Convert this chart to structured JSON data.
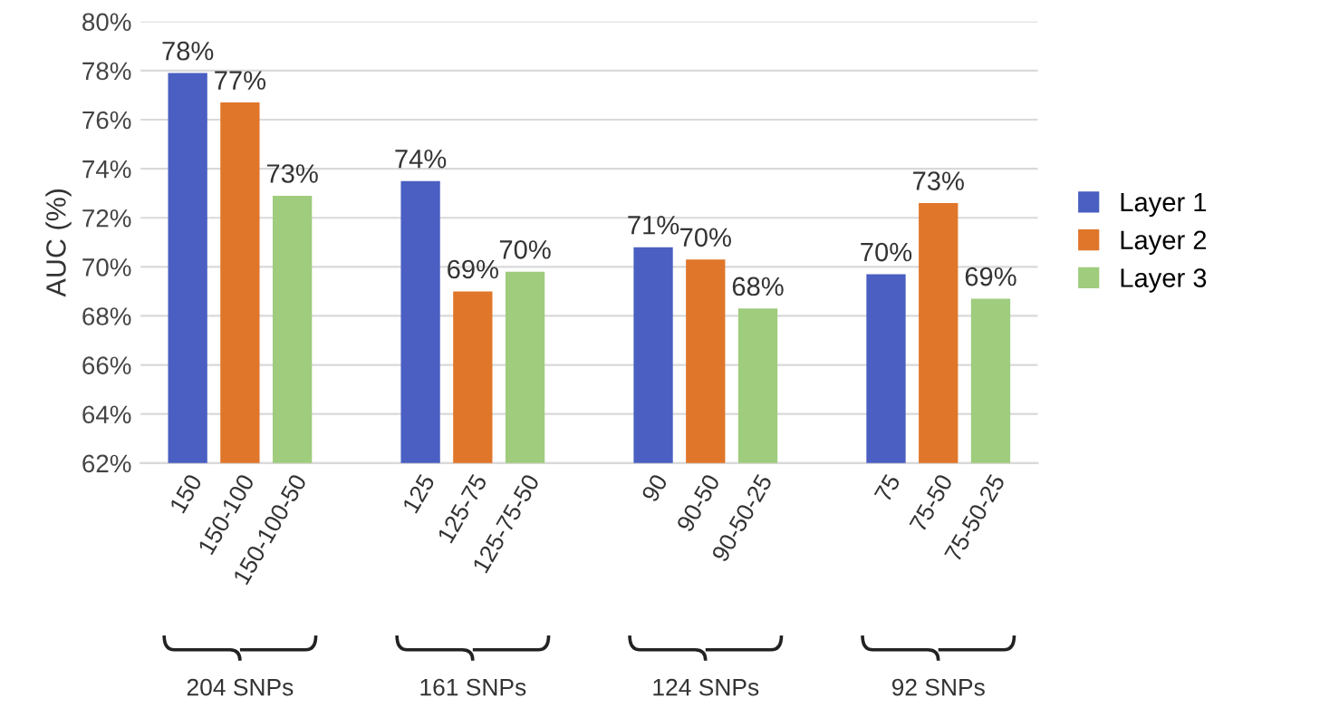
{
  "chart_data": {
    "type": "bar",
    "ylabel": "AUC (%)",
    "categories": [
      "150",
      "150-100",
      "150-100-50",
      "125",
      "125-75",
      "125-75-50",
      "90",
      "90-50",
      "90-50-25",
      "75",
      "75-50",
      "75-50-25"
    ],
    "series": [
      {
        "name": "Layer 1",
        "color": "#4a5fc1",
        "values": [
          77.9,
          null,
          null,
          73.5,
          null,
          null,
          70.8,
          null,
          null,
          69.7,
          null,
          null
        ],
        "value_labels": [
          "78%",
          null,
          null,
          "74%",
          null,
          null,
          "71%",
          null,
          null,
          "70%",
          null,
          null
        ]
      },
      {
        "name": "Layer 2",
        "color": "#e0762a",
        "values": [
          null,
          76.7,
          null,
          null,
          69.0,
          null,
          null,
          70.3,
          null,
          null,
          72.6,
          null
        ],
        "value_labels": [
          null,
          "77%",
          null,
          null,
          "69%",
          null,
          null,
          "70%",
          null,
          null,
          "73%",
          null
        ]
      },
      {
        "name": "Layer 3",
        "color": "#9fcc7d",
        "values": [
          null,
          null,
          72.9,
          null,
          null,
          69.8,
          null,
          null,
          68.3,
          null,
          null,
          68.7
        ],
        "value_labels": [
          null,
          null,
          "73%",
          null,
          null,
          "70%",
          null,
          null,
          "68%",
          null,
          null,
          "69%"
        ]
      }
    ],
    "ylim": [
      62,
      80
    ],
    "yticks": [
      {
        "value": 62,
        "label": "62%"
      },
      {
        "value": 64,
        "label": "64%"
      },
      {
        "value": 66,
        "label": "66%"
      },
      {
        "value": 68,
        "label": "68%"
      },
      {
        "value": 70,
        "label": "70%"
      },
      {
        "value": 72,
        "label": "72%"
      },
      {
        "value": 74,
        "label": "74%"
      },
      {
        "value": 76,
        "label": "76%"
      },
      {
        "value": 78,
        "label": "78%"
      },
      {
        "value": 80,
        "label": "80%"
      }
    ],
    "grid": "y",
    "legend": "right",
    "annotations": [
      "204 SNPs",
      "161 SNPs",
      "124 SNPs",
      "92 SNPs"
    ]
  }
}
